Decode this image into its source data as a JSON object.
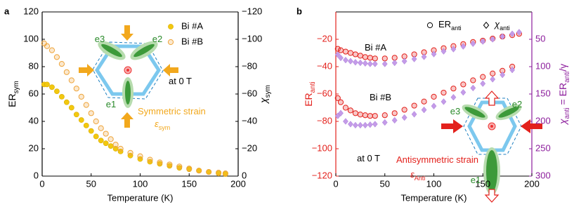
{
  "chart_data": [
    {
      "type": "scatter",
      "panel_label": "a",
      "x_label": "Temperature (K)",
      "y_label": [
        {
          "text": "ER",
          "sub": false
        },
        {
          "text": "sym",
          "sub": true
        }
      ],
      "y2_label": [
        {
          "text": "χ",
          "sub": false
        },
        {
          "text": "sym",
          "sub": true
        }
      ],
      "y_color": "#000000",
      "y2_color": "#000000",
      "x": [
        2,
        5,
        10,
        15,
        20,
        25,
        30,
        35,
        40,
        45,
        50,
        55,
        60,
        65,
        70,
        75,
        80,
        90,
        100,
        110,
        120,
        130,
        140,
        150,
        160,
        170,
        180,
        187
      ],
      "xlim": [
        0,
        200
      ],
      "xticks": [
        0,
        50,
        100,
        150,
        200
      ],
      "ylim": [
        0,
        120
      ],
      "yticks": [
        0,
        20,
        40,
        60,
        80,
        100,
        120
      ],
      "y2lim": [
        0,
        -120
      ],
      "y2ticks": [
        0,
        {
          "value": -20,
          "label": "−20"
        },
        {
          "value": -40,
          "label": "−40"
        },
        {
          "value": -60,
          "label": "−60"
        },
        {
          "value": -80,
          "label": "−80"
        },
        {
          "value": -100,
          "label": "−100"
        },
        {
          "value": -120,
          "label": "−120"
        }
      ],
      "legend": "upper right",
      "series": [
        {
          "name": "Bi #A",
          "color": "#f2c80f",
          "marker": "circle",
          "values": [
            67,
            67,
            65,
            62,
            58,
            54,
            50,
            45,
            41,
            37,
            33,
            29,
            26,
            24,
            22,
            20,
            18,
            15,
            12.5,
            10.5,
            9,
            7.5,
            6,
            5,
            4,
            3,
            2,
            1.5
          ]
        },
        {
          "name": "Bi #B",
          "color": "#eea43a",
          "marker": "circle-open",
          "values": [
            97,
            95,
            92,
            87,
            82,
            76,
            70,
            64,
            58,
            52,
            46,
            40,
            35,
            31,
            27,
            23,
            20,
            17,
            14.5,
            12,
            10,
            8.5,
            7,
            5.5,
            4,
            3,
            2.5,
            2
          ]
        }
      ],
      "annotations": [
        {
          "parts": [
            {
              "text": "e3",
              "sub": false
            }
          ],
          "color": "#2a8a2a"
        },
        {
          "parts": [
            {
              "text": "e2",
              "sub": false
            }
          ],
          "color": "#2a8a2a"
        },
        {
          "parts": [
            {
              "text": "e1",
              "sub": false
            }
          ],
          "color": "#2a8a2a"
        },
        {
          "parts": [
            {
              "text": "at 0 T",
              "sub": false
            }
          ],
          "color": "#000000"
        },
        {
          "parts": [
            {
              "text": "Symmetric strain",
              "sub": false
            }
          ],
          "color": "#f2a81d"
        },
        {
          "parts": [
            {
              "text": "ε",
              "sub": false
            },
            {
              "text": "sym",
              "sub": true
            }
          ],
          "color": "#f2a81d"
        }
      ]
    },
    {
      "type": "scatter",
      "panel_label": "b",
      "x_label": "Temperature (K)",
      "y_label": [
        {
          "text": "ER",
          "sub": false
        },
        {
          "text": "anti",
          "sub": true
        }
      ],
      "y2_label": [
        {
          "text": "χ",
          "sub": false
        },
        {
          "text": "anti",
          "sub": true
        },
        {
          "text": " = ER",
          "sub": false
        },
        {
          "text": "anti",
          "sub": true
        },
        {
          "text": "/γ",
          "sub": false
        }
      ],
      "y_color": "#e3211c",
      "y2_color": "#8c1d9c",
      "x": [
        2,
        5,
        10,
        15,
        20,
        25,
        30,
        35,
        40,
        50,
        60,
        70,
        80,
        90,
        100,
        110,
        120,
        130,
        140,
        150,
        160,
        170,
        180,
        187
      ],
      "xlim": [
        0,
        200
      ],
      "xticks": [
        0,
        50,
        100,
        150,
        200
      ],
      "ylim": [
        -120,
        0
      ],
      "yticks": [
        {
          "value": -20,
          "label": "−20"
        },
        {
          "value": -40,
          "label": "−40"
        },
        {
          "value": -60,
          "label": "−60"
        },
        {
          "value": -80,
          "label": "−80"
        },
        {
          "value": -100,
          "label": "−100"
        },
        {
          "value": -120,
          "label": "−120"
        }
      ],
      "y2lim": [
        300,
        0
      ],
      "y2ticks": [
        50,
        100,
        150,
        200,
        250,
        300
      ],
      "legend": "top",
      "legend_entries": [
        {
          "parts": [
            {
              "text": "ER",
              "sub": false
            },
            {
              "text": "anti",
              "sub": true
            }
          ],
          "marker": "circle-open",
          "color": "#000000"
        },
        {
          "parts": [
            {
              "text": "χ",
              "sub": false
            },
            {
              "text": "anti",
              "sub": true
            }
          ],
          "marker": "diamond-open",
          "color": "#000000"
        }
      ],
      "series": [
        {
          "color": "#e3211c",
          "marker": "circle-open",
          "values": [
            -27,
            -28,
            -29,
            -30,
            -31,
            -32,
            -33,
            -33.5,
            -34,
            -34,
            -33.5,
            -32.5,
            -31,
            -29.5,
            -28,
            -26.5,
            -25,
            -23.5,
            -22,
            -21,
            -19.5,
            -18,
            -17,
            -16
          ]
        },
        {
          "color": "#e3211c",
          "marker": "circle-open",
          "values": [
            -63,
            -66,
            -70,
            -72,
            -74,
            -75,
            -75.5,
            -76,
            -76,
            -75.5,
            -74,
            -71.5,
            -68.5,
            -65.5,
            -62,
            -59,
            -56,
            -53,
            -50,
            -47.5,
            -45,
            -43,
            -40,
            null
          ]
        },
        {
          "color": "#c49be8",
          "marker": "diamond",
          "axis": "y2",
          "values": [
            78,
            84,
            88,
            90,
            92,
            93,
            94,
            95,
            95,
            95,
            93,
            90,
            86,
            82,
            77,
            72,
            68,
            63,
            58,
            54,
            50,
            45,
            40,
            37
          ]
        },
        {
          "color": "#c49be8",
          "marker": "diamond",
          "axis": "y2",
          "values": [
            190,
            185,
            200,
            205,
            207,
            207,
            207,
            206,
            205,
            202,
            198,
            193,
            187,
            179,
            172,
            164,
            156,
            147,
            139,
            131,
            123,
            115,
            106,
            null
          ]
        }
      ],
      "annotations": [
        {
          "parts": [
            {
              "text": "Bi #A",
              "sub": false
            }
          ],
          "color": "#000000"
        },
        {
          "parts": [
            {
              "text": "Bi #B",
              "sub": false
            }
          ],
          "color": "#000000"
        },
        {
          "parts": [
            {
              "text": "at 0 T",
              "sub": false
            }
          ],
          "color": "#000000"
        },
        {
          "parts": [
            {
              "text": "Antisymmetric strain",
              "sub": false
            }
          ],
          "color": "#e3211c"
        },
        {
          "parts": [
            {
              "text": "ε",
              "sub": false
            },
            {
              "text": "Anti",
              "sub": true
            }
          ],
          "color": "#e3211c"
        },
        {
          "parts": [
            {
              "text": "e3",
              "sub": false
            }
          ],
          "color": "#2a8a2a"
        },
        {
          "parts": [
            {
              "text": "e2",
              "sub": false
            }
          ],
          "color": "#2a8a2a"
        },
        {
          "parts": [
            {
              "text": "e1",
              "sub": false
            }
          ],
          "color": "#2a8a2a"
        }
      ]
    }
  ]
}
